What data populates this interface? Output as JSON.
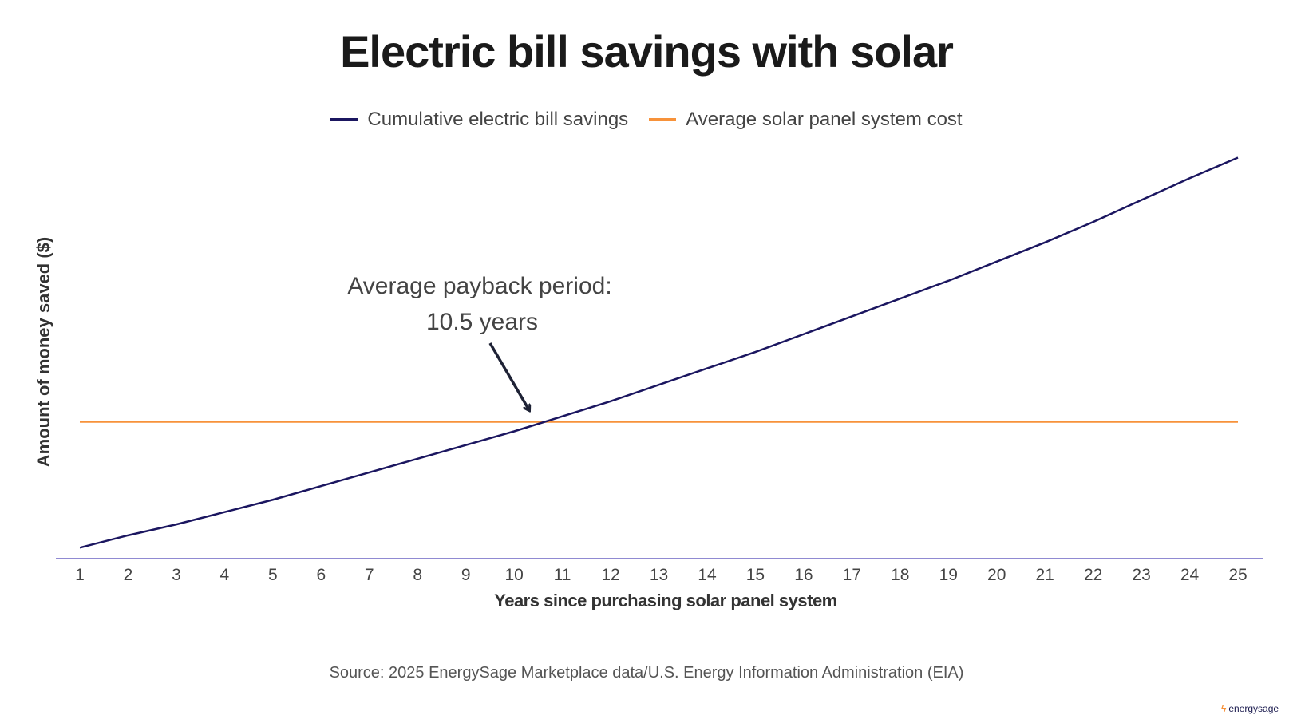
{
  "chart_data": {
    "type": "line",
    "title": "Electric bill savings with solar",
    "xlabel": "Years since purchasing solar panel system",
    "ylabel": "Amount of money saved ($)",
    "x": [
      1,
      2,
      3,
      4,
      5,
      6,
      7,
      8,
      9,
      10,
      11,
      12,
      13,
      14,
      15,
      16,
      17,
      18,
      19,
      20,
      21,
      22,
      23,
      24,
      25
    ],
    "series": [
      {
        "name": "Cumulative electric bill savings",
        "color": "#1b1660",
        "values": [
          0.08,
          0.17,
          0.25,
          0.34,
          0.43,
          0.53,
          0.63,
          0.73,
          0.83,
          0.93,
          1.04,
          1.15,
          1.27,
          1.39,
          1.51,
          1.64,
          1.77,
          1.9,
          2.03,
          2.17,
          2.31,
          2.46,
          2.62,
          2.78,
          2.93
        ]
      },
      {
        "name": "Average solar panel system cost",
        "color": "#f7923a",
        "values": [
          1,
          1,
          1,
          1,
          1,
          1,
          1,
          1,
          1,
          1,
          1,
          1,
          1,
          1,
          1,
          1,
          1,
          1,
          1,
          1,
          1,
          1,
          1,
          1,
          1
        ]
      }
    ],
    "xlim": [
      0.5,
      25.5
    ],
    "ylim": [
      0,
      3.1
    ],
    "y_ticks_shown": false,
    "grid": false,
    "legend_position": "top-center",
    "annotation": {
      "line1": "Average payback period:",
      "line2": "10.5 years",
      "x": 10.5
    },
    "source": "Source: 2025 EnergySage Marketplace data/U.S. Energy Information Administration (EIA)"
  },
  "logo": {
    "text": "energysage",
    "icon": "lightning-bolt-icon",
    "color": "#f7923a"
  }
}
